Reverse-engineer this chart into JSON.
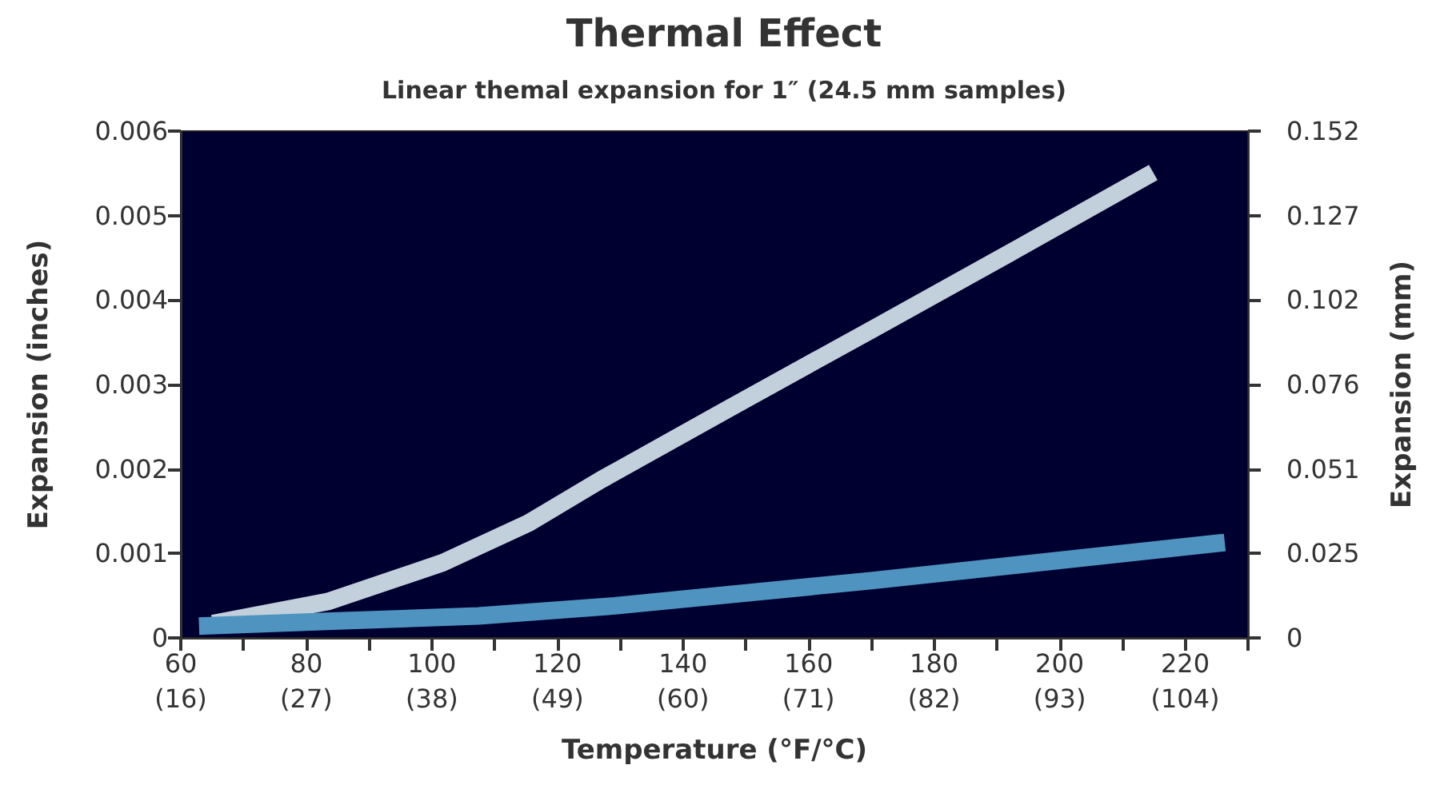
{
  "chart_data": {
    "type": "line",
    "title": "Thermal Effect",
    "subtitle": "Linear themal expansion for 1″ (24.5 mm samples)",
    "xlabel": "Temperature (°F/°C)",
    "ylabel": "Expansion (inches)",
    "y2label": "Expansion (mm)",
    "series": [
      {
        "color": "#c2d0dc",
        "x": [
          65.1,
          83.4,
          101.7,
          115.4,
          126.9,
          147.4,
          170.3,
          193.1,
          214.9
        ],
        "values": [
          0.00017,
          0.00043,
          0.00089,
          0.00136,
          0.00187,
          0.00272,
          0.00366,
          0.0046,
          0.00551
        ]
      },
      {
        "color": "#4f94c0",
        "x": [
          62.9,
          85,
          107.4,
          129.1,
          170.3,
          226.3
        ],
        "values": [
          0.00014,
          0.0002,
          0.00026,
          0.00038,
          0.00068,
          0.00113
        ]
      }
    ],
    "xlim": [
      60,
      230
    ],
    "xticks": [
      60,
      {
        "value": 70,
        "label": null
      },
      80,
      {
        "value": 90,
        "label": null
      },
      100,
      {
        "value": 110,
        "label": null
      },
      120,
      {
        "value": 130,
        "label": null
      },
      140,
      {
        "value": 150,
        "label": null
      },
      160,
      {
        "value": 170,
        "label": null
      },
      180,
      {
        "value": 190,
        "label": null
      },
      200,
      {
        "value": 210,
        "label": null
      },
      220,
      {
        "value": 230,
        "label": null
      }
    ],
    "x2lim": [
      15.556,
      110
    ],
    "x2ticks": [
      {
        "value": 15.556,
        "label": "(16)"
      },
      {
        "value": 26.667,
        "label": "(27)"
      },
      {
        "value": 37.778,
        "label": "(38)"
      },
      {
        "value": 48.889,
        "label": "(49)"
      },
      {
        "value": 60,
        "label": "(60)"
      },
      {
        "value": 71.111,
        "label": "(71)"
      },
      {
        "value": 82.222,
        "label": "(82)"
      },
      {
        "value": 93.333,
        "label": "(93)"
      },
      {
        "value": 104.444,
        "label": "(104)"
      }
    ],
    "ylim": [
      0,
      0.006
    ],
    "yticks": [
      0,
      0.001,
      0.002,
      0.003,
      0.004,
      0.005,
      0.006
    ],
    "y2lim": [
      0,
      0.1524
    ],
    "y2ticks": [
      0,
      {
        "value": 0.0254,
        "label": "0.025"
      },
      {
        "value": 0.0508,
        "label": "0.051"
      },
      {
        "value": 0.0762,
        "label": "0.076"
      },
      {
        "value": 0.1016,
        "label": "0.102"
      },
      0.127,
      {
        "value": 0.1524,
        "label": "0.152"
      }
    ],
    "grid": false,
    "marker": "none",
    "line_style": "solid"
  }
}
